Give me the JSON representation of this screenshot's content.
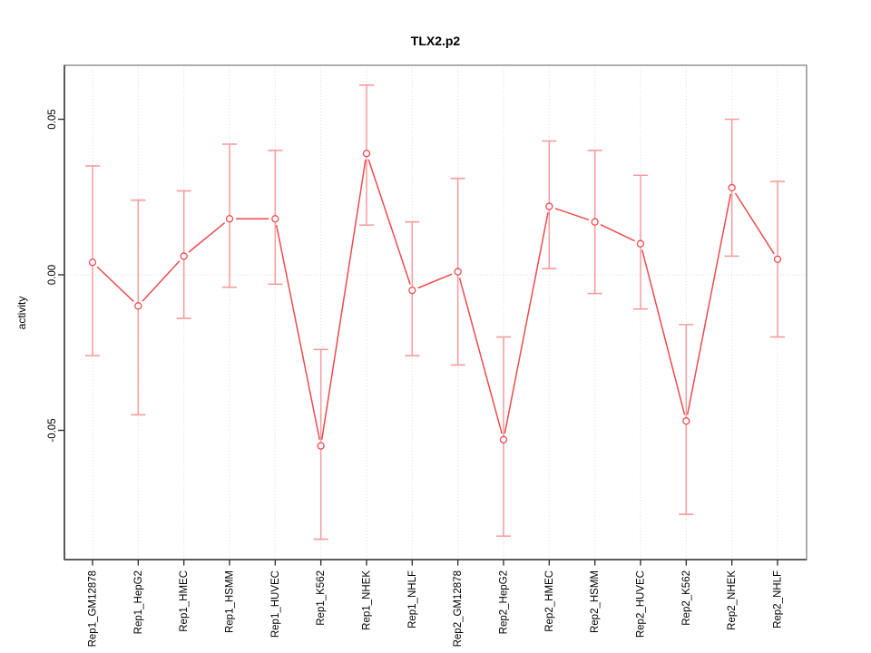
{
  "chart_data": {
    "type": "line",
    "title": "TLX2.p2",
    "xlabel": "",
    "ylabel": "activity",
    "legend": "none",
    "grid": "dotted vertical line at each category; dotted horizontal line at y=0",
    "categories": [
      "Rep1_GM12878",
      "Rep1_HepG2",
      "Rep1_HMEC",
      "Rep1_HSMM",
      "Rep1_HUVEC",
      "Rep1_K562",
      "Rep1_NHEK",
      "Rep1_NHLF",
      "Rep2_GM12878",
      "Rep2_HepG2",
      "Rep2_HMEC",
      "Rep2_HSMM",
      "Rep2_HUVEC",
      "Rep2_K562",
      "Rep2_NHEK",
      "Rep2_NHLF"
    ],
    "series": [
      {
        "name": "activity",
        "marker": "open-circle",
        "color": "#ee4a4e",
        "error_color": "#f59c9c",
        "values": [
          0.004,
          -0.01,
          0.006,
          0.018,
          0.018,
          -0.055,
          0.039,
          -0.005,
          0.001,
          -0.053,
          0.022,
          0.017,
          0.01,
          -0.047,
          0.028,
          0.005
        ],
        "lower": [
          -0.026,
          -0.045,
          -0.014,
          -0.004,
          -0.003,
          -0.085,
          0.016,
          -0.026,
          -0.029,
          -0.084,
          0.002,
          -0.006,
          -0.011,
          -0.077,
          0.006,
          -0.02
        ],
        "upper": [
          0.035,
          0.024,
          0.027,
          0.042,
          0.04,
          -0.024,
          0.061,
          0.017,
          0.031,
          -0.02,
          0.043,
          0.04,
          0.032,
          -0.016,
          0.05,
          0.03
        ]
      }
    ],
    "yticks": {
      "values": [
        -0.05,
        0,
        0.05
      ],
      "labels": [
        "-0.05",
        "0.00",
        "0.05"
      ]
    },
    "ylim": [
      -0.0915,
      0.0675
    ],
    "colors": {
      "box": "#999999",
      "axis": "#4d4d4d",
      "gridline": "#d9d9d9",
      "tick": "#333333"
    }
  }
}
